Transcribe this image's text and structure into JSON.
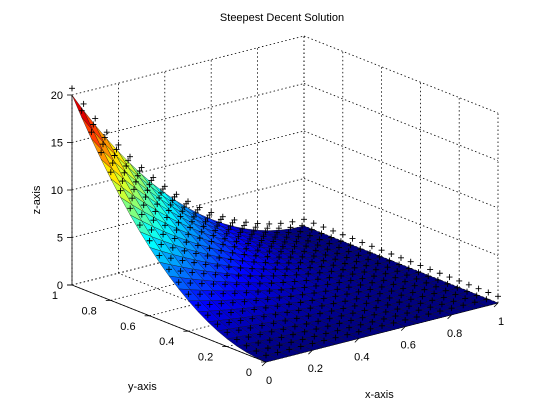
{
  "chart_data": {
    "type": "surface",
    "title": "Steepest Decent Solution",
    "xlabel": "x-axis",
    "ylabel": "y-axis",
    "zlabel": "z-axis",
    "xlim": [
      0,
      1
    ],
    "ylim": [
      0,
      1
    ],
    "zlim": [
      0,
      20
    ],
    "x_ticks": [
      "0",
      "0.2",
      "0.4",
      "0.6",
      "0.8",
      "1"
    ],
    "y_ticks": [
      "0",
      "0.2",
      "0.4",
      "0.6",
      "0.8",
      "1"
    ],
    "z_ticks": [
      "0",
      "5",
      "10",
      "15",
      "20"
    ],
    "grid": true,
    "colormap": "jet",
    "grid_size": 21,
    "surface_fn": "20*(1-x)^2*y^2",
    "surface_samples": [
      {
        "x": 0,
        "y": 0,
        "z": 0
      },
      {
        "x": 0,
        "y": 0.5,
        "z": 5
      },
      {
        "x": 0,
        "y": 1,
        "z": 20
      },
      {
        "x": 0.5,
        "y": 1,
        "z": 5
      },
      {
        "x": 1,
        "y": 1,
        "z": 0
      },
      {
        "x": 1,
        "y": 0,
        "z": 0
      }
    ],
    "marker_series": {
      "name": "",
      "marker": "+",
      "offset": 0.7
    },
    "series": [
      {
        "name": "",
        "type": "surface"
      },
      {
        "name": "",
        "type": "markers",
        "marker": "+"
      }
    ]
  }
}
